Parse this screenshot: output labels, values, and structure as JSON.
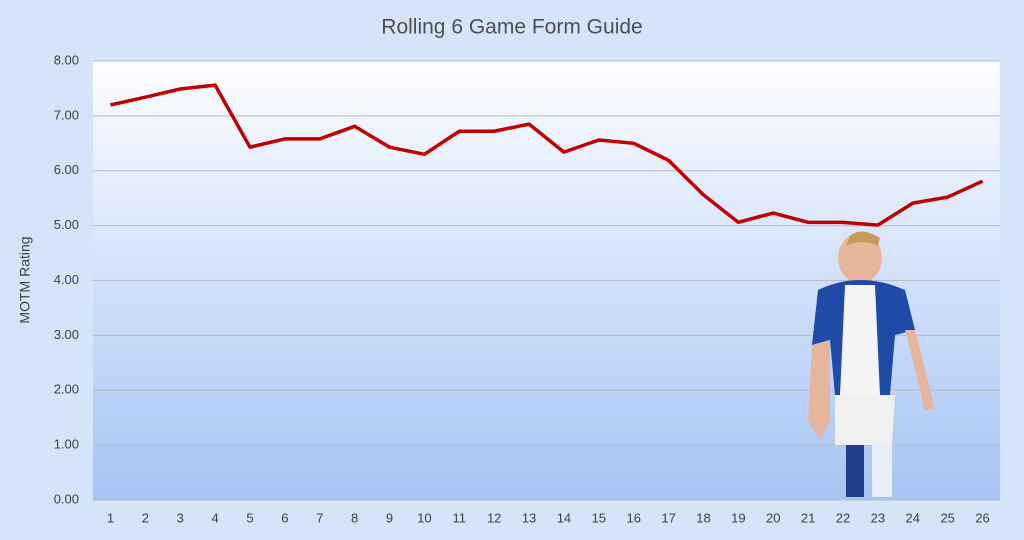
{
  "chart_data": {
    "type": "line",
    "title": "Rolling 6 Game Form Guide",
    "y_label": "MOTM Rating",
    "categories": [
      "1",
      "2",
      "3",
      "4",
      "5",
      "6",
      "7",
      "8",
      "9",
      "10",
      "11",
      "12",
      "13",
      "14",
      "15",
      "16",
      "17",
      "18",
      "19",
      "20",
      "21",
      "22",
      "23",
      "24",
      "25",
      "26"
    ],
    "series": [
      {
        "name": "Rolling 6 Game Form",
        "color": "#c00000",
        "values": [
          7.2,
          7.34,
          7.49,
          7.56,
          6.43,
          6.58,
          6.58,
          6.81,
          6.43,
          6.3,
          6.72,
          6.72,
          6.85,
          6.34,
          6.56,
          6.5,
          6.19,
          5.56,
          5.06,
          5.23,
          5.06,
          5.06,
          5.01,
          5.41,
          5.52,
          5.81
        ]
      }
    ],
    "ylim": [
      0,
      8
    ],
    "yticks": [
      {
        "value": 0,
        "label": "0.00"
      },
      {
        "value": 1,
        "label": "1.00"
      },
      {
        "value": 2,
        "label": "2.00"
      },
      {
        "value": 3,
        "label": "3.00"
      },
      {
        "value": 4,
        "label": "4.00"
      },
      {
        "value": 5,
        "label": "5.00"
      },
      {
        "value": 6,
        "label": "6.00"
      },
      {
        "value": 7,
        "label": "7.00"
      },
      {
        "value": 8,
        "label": "8.00"
      }
    ],
    "grid": true
  }
}
